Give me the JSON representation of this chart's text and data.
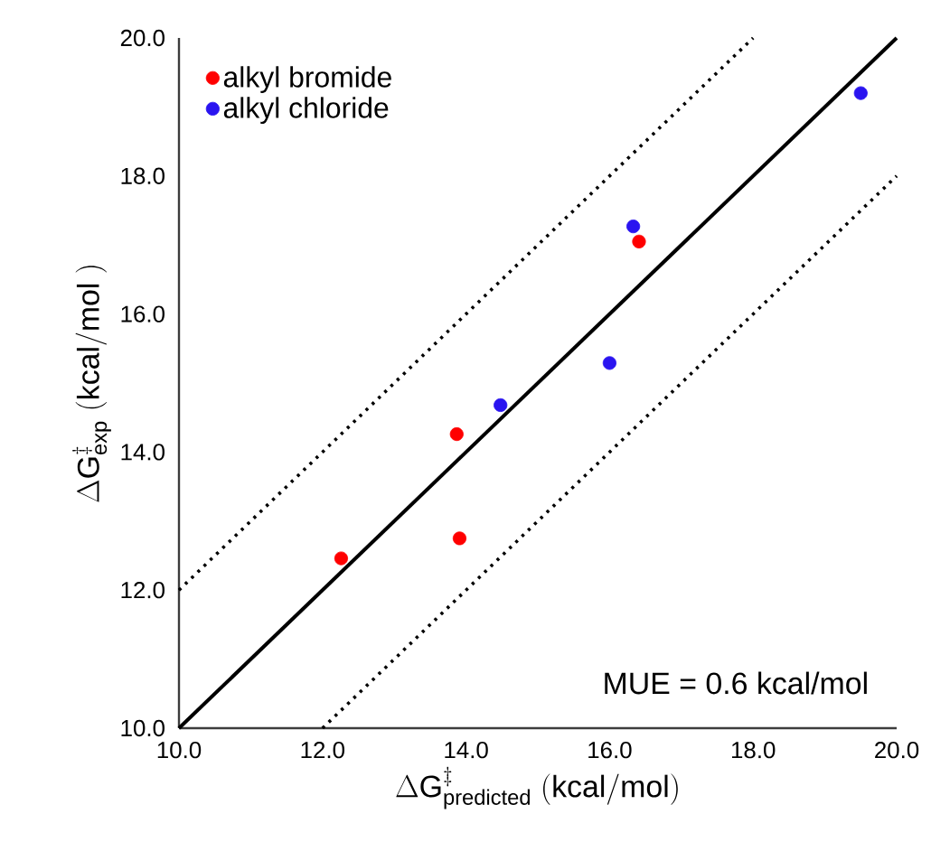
{
  "chart_data": {
    "type": "scatter",
    "xlabel": "\\Delta \\mathrm{G}^{\\ddagger}_{\\mathrm{predicted}}\\ \\mathrm{(kcal/mol)}",
    "ylabel": "\\Delta \\mathrm{G}^{\\ddagger}_{\\mathrm{exp}}\\ \\mathrm{(kcal/mol\\ )}",
    "xlim": [
      10,
      20
    ],
    "ylim": [
      10,
      20
    ],
    "xticks": [
      {
        "value": 10,
        "label": "10.0"
      },
      {
        "value": 12,
        "label": "12.0"
      },
      {
        "value": 14,
        "label": "14.0"
      },
      {
        "value": 16,
        "label": "16.0"
      },
      {
        "value": 18,
        "label": "18.0"
      },
      {
        "value": 20,
        "label": "20.0"
      }
    ],
    "yticks": [
      {
        "value": 10,
        "label": "10.0"
      },
      {
        "value": 12,
        "label": "12.0"
      },
      {
        "value": 14,
        "label": "14.0"
      },
      {
        "value": 16,
        "label": "16.0"
      },
      {
        "value": 18,
        "label": "18.0"
      },
      {
        "value": 20,
        "label": "20.0"
      }
    ],
    "grid": false,
    "legend": "top left",
    "series": [
      {
        "name": "alkyl bromide",
        "color": "#ff0000",
        "marker": "circle",
        "x": [
          12.26,
          13.87,
          13.91,
          16.41
        ],
        "values": [
          12.46,
          14.26,
          12.75,
          17.05
        ]
      },
      {
        "name": "alkyl chloride",
        "color": "#2a14f0",
        "marker": "circle",
        "x": [
          14.48,
          16.0,
          16.33,
          19.5
        ],
        "values": [
          14.68,
          15.29,
          17.27,
          19.2
        ]
      },
      {
        "type": "line",
        "color": "#000000",
        "line_style": "solid",
        "marker": "none",
        "x": [
          10,
          20
        ],
        "values": [
          10,
          20
        ]
      },
      {
        "type": "line",
        "color": "#000000",
        "line_style": "dotted",
        "marker": "none",
        "x": [
          10,
          18
        ],
        "values": [
          12,
          20
        ]
      },
      {
        "type": "line",
        "color": "#000000",
        "line_style": "dotted",
        "marker": "none",
        "x": [
          12,
          20
        ],
        "values": [
          10,
          18
        ]
      }
    ],
    "annotations": [
      "MUE  = 0.6 kcal/mol"
    ]
  }
}
